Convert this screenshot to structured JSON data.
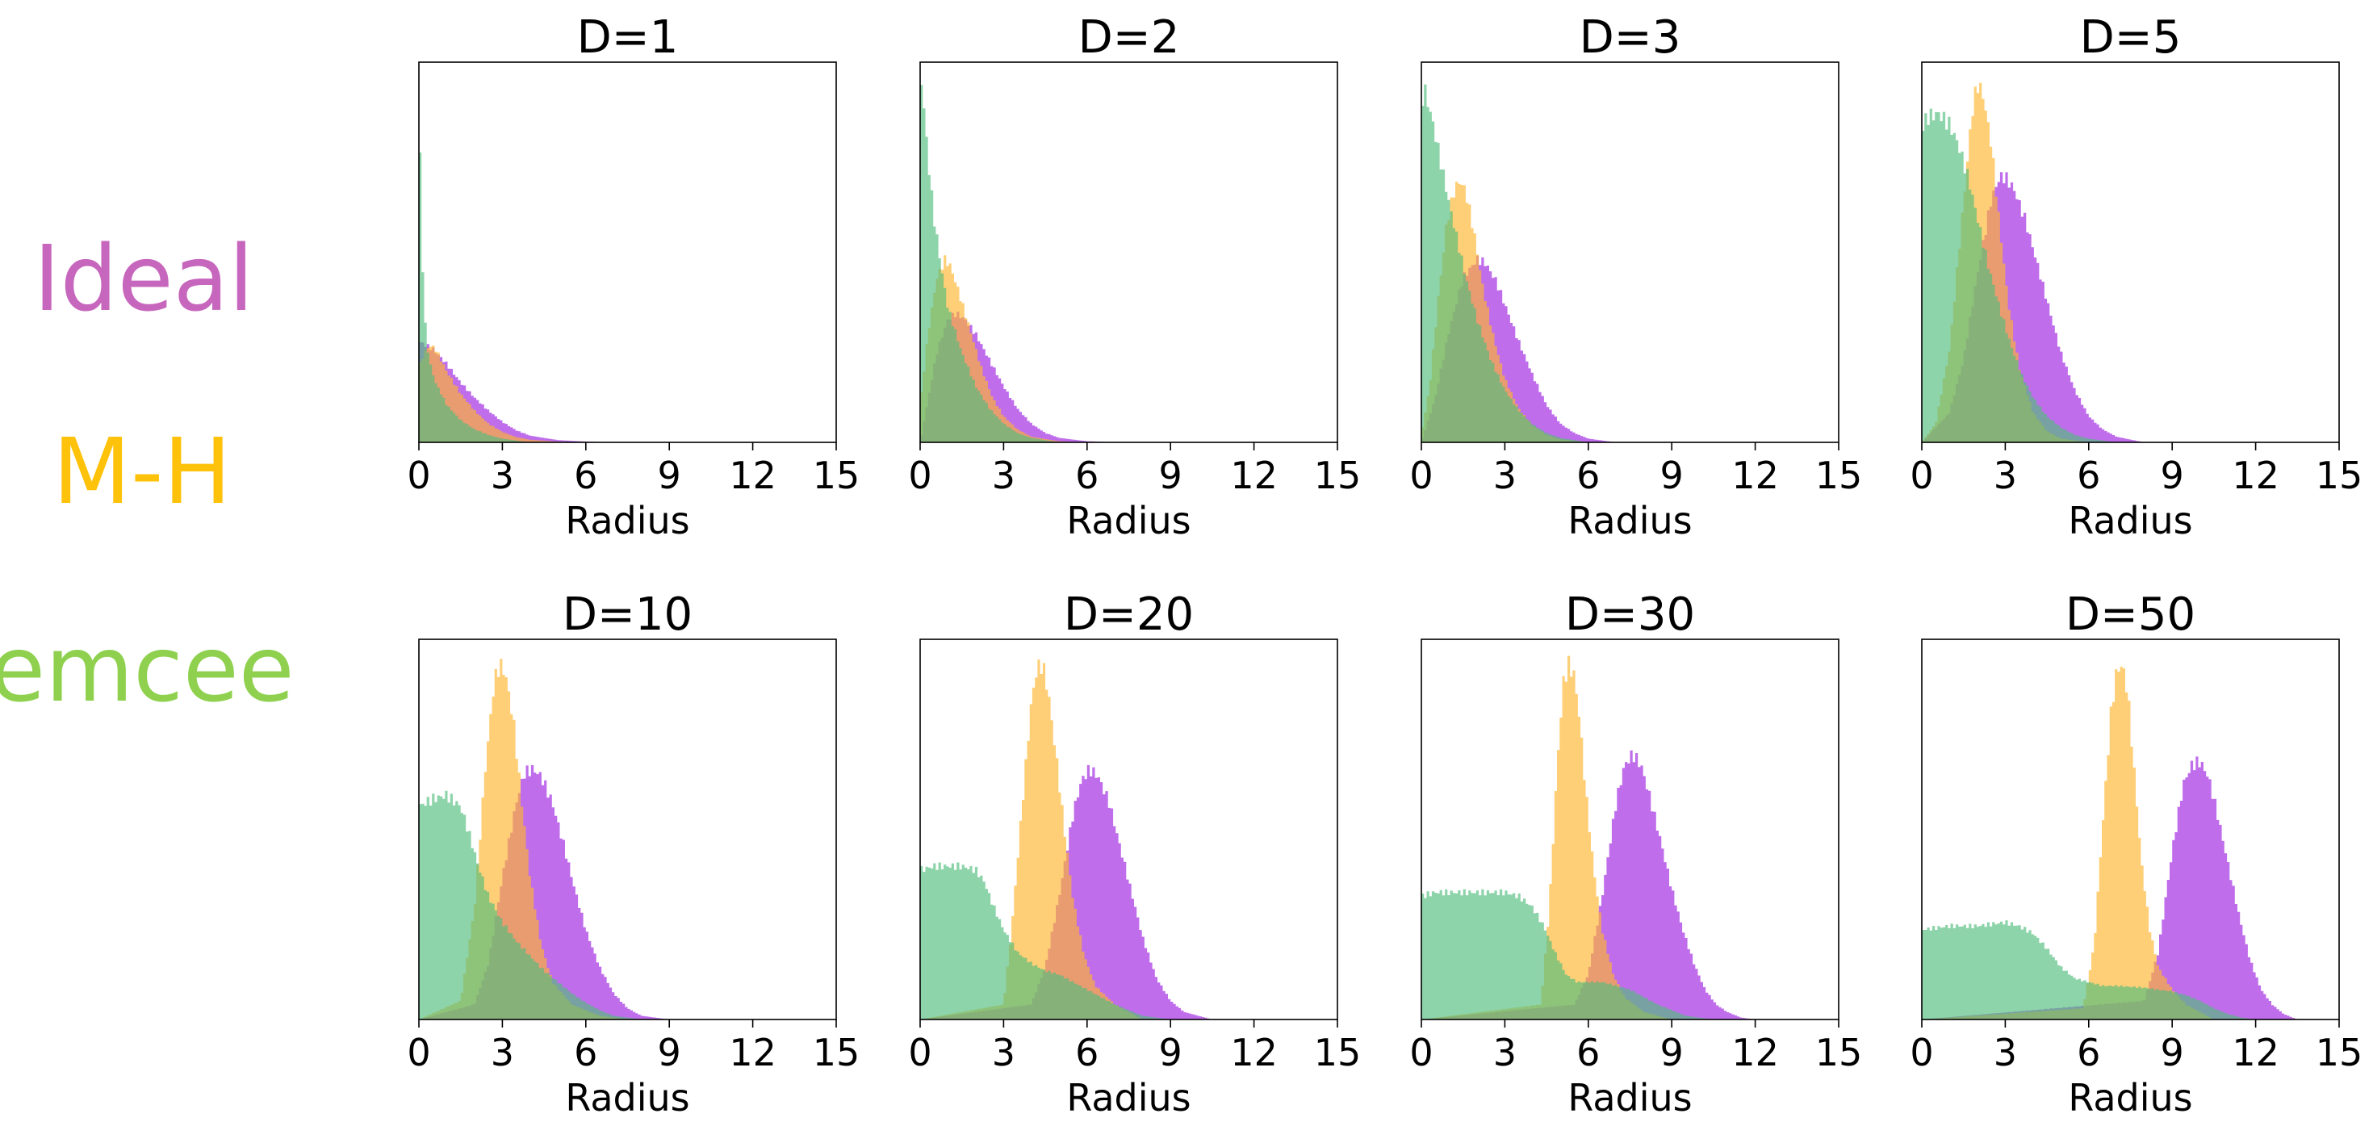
{
  "legend": [
    {
      "label": "Ideal",
      "color": "#c766bd"
    },
    {
      "label": "M-H",
      "color": "#ffc20a"
    },
    {
      "label": "emcee",
      "color": "#8fd14f"
    }
  ],
  "chart_data": [
    {
      "type": "histogram",
      "title": "D=1",
      "xlabel": "Radius",
      "xlim": [
        0,
        15
      ],
      "xticks": [
        0,
        3,
        6,
        9,
        12,
        15
      ],
      "xtick_labels": [
        "0",
        "3",
        "6",
        "9",
        "12",
        "15"
      ],
      "series": [
        {
          "name": "Ideal",
          "color": "#9d1fe0",
          "x": [
            0,
            0.5,
            1,
            1.5,
            2,
            2.5,
            3,
            3.5,
            4,
            5,
            6,
            7
          ],
          "y": [
            0.27,
            0.25,
            0.21,
            0.16,
            0.12,
            0.085,
            0.055,
            0.032,
            0.018,
            0.006,
            0.002,
            0
          ]
        },
        {
          "name": "M-H",
          "color": "#ffb62e",
          "x": [
            0,
            0.2,
            0.4,
            0.6,
            0.8,
            1,
            1.5,
            2,
            2.5,
            3,
            3.5,
            4,
            5,
            6
          ],
          "y": [
            0.2,
            0.24,
            0.26,
            0.25,
            0.22,
            0.19,
            0.13,
            0.085,
            0.05,
            0.028,
            0.014,
            0.007,
            0.002,
            0
          ]
        },
        {
          "name": "emcee",
          "color": "#52bd7c",
          "x": [
            0,
            0.05,
            0.1,
            0.2,
            0.3,
            0.4,
            0.6,
            0.8,
            1,
            1.5,
            2,
            2.5,
            3,
            4
          ],
          "y": [
            1,
            0.75,
            0.55,
            0.34,
            0.26,
            0.21,
            0.16,
            0.13,
            0.1,
            0.06,
            0.035,
            0.02,
            0.01,
            0
          ]
        }
      ]
    },
    {
      "type": "histogram",
      "title": "D=2",
      "xlabel": "Radius",
      "xlim": [
        0,
        15
      ],
      "xticks": [
        0,
        3,
        6,
        9,
        12,
        15
      ],
      "xtick_labels": [
        "0",
        "3",
        "6",
        "9",
        "12",
        "15"
      ],
      "series": [
        {
          "name": "Ideal",
          "color": "#9d1fe0",
          "x": [
            0,
            0.3,
            0.6,
            1,
            1.3,
            1.6,
            2,
            2.5,
            3,
            3.5,
            4,
            4.5,
            5,
            6,
            7
          ],
          "y": [
            0,
            0.12,
            0.24,
            0.33,
            0.345,
            0.33,
            0.29,
            0.22,
            0.15,
            0.09,
            0.05,
            0.025,
            0.012,
            0.003,
            0
          ]
        },
        {
          "name": "M-H",
          "color": "#ffb62e",
          "x": [
            0,
            0.3,
            0.6,
            0.9,
            1.1,
            1.4,
            1.8,
            2.2,
            2.6,
            3,
            3.5,
            4,
            5,
            6
          ],
          "y": [
            0.1,
            0.3,
            0.44,
            0.49,
            0.47,
            0.4,
            0.3,
            0.2,
            0.12,
            0.07,
            0.035,
            0.015,
            0.003,
            0
          ]
        },
        {
          "name": "emcee",
          "color": "#52bd7c",
          "x": [
            0,
            0.1,
            0.3,
            0.5,
            0.8,
            1,
            1.5,
            2,
            2.5,
            3,
            3.5,
            4,
            5
          ],
          "y": [
            1,
            0.93,
            0.75,
            0.6,
            0.45,
            0.36,
            0.24,
            0.15,
            0.09,
            0.05,
            0.025,
            0.012,
            0
          ]
        }
      ]
    },
    {
      "type": "histogram",
      "title": "D=3",
      "xlabel": "Radius",
      "xlim": [
        0,
        15
      ],
      "xticks": [
        0,
        3,
        6,
        9,
        12,
        15
      ],
      "xtick_labels": [
        "0",
        "3",
        "6",
        "9",
        "12",
        "15"
      ],
      "series": [
        {
          "name": "Ideal",
          "color": "#9d1fe0",
          "x": [
            0,
            0.5,
            1,
            1.5,
            2,
            2.3,
            2.7,
            3,
            3.5,
            4,
            4.5,
            5,
            5.5,
            6,
            7
          ],
          "y": [
            0,
            0.12,
            0.3,
            0.44,
            0.49,
            0.48,
            0.43,
            0.37,
            0.27,
            0.18,
            0.1,
            0.05,
            0.025,
            0.01,
            0
          ]
        },
        {
          "name": "M-H",
          "color": "#ffb62e",
          "x": [
            0,
            0.3,
            0.6,
            0.9,
            1.2,
            1.4,
            1.6,
            1.9,
            2.2,
            2.6,
            3,
            3.5,
            4,
            4.5,
            5,
            6
          ],
          "y": [
            0.02,
            0.15,
            0.38,
            0.58,
            0.68,
            0.7,
            0.67,
            0.56,
            0.42,
            0.28,
            0.17,
            0.09,
            0.045,
            0.02,
            0.008,
            0
          ]
        },
        {
          "name": "emcee",
          "color": "#52bd7c",
          "x": [
            0,
            0.1,
            0.4,
            0.7,
            1,
            1.3,
            1.6,
            2,
            2.5,
            3,
            3.5,
            4,
            4.5,
            5,
            6
          ],
          "y": [
            0.9,
            0.95,
            0.86,
            0.75,
            0.64,
            0.54,
            0.44,
            0.33,
            0.22,
            0.14,
            0.085,
            0.048,
            0.025,
            0.012,
            0
          ]
        }
      ]
    },
    {
      "type": "histogram",
      "title": "D=5",
      "xlabel": "Radius",
      "xlim": [
        0,
        15
      ],
      "xticks": [
        0,
        3,
        6,
        9,
        12,
        15
      ],
      "xtick_labels": [
        "0",
        "3",
        "6",
        "9",
        "12",
        "15"
      ],
      "series": [
        {
          "name": "Ideal",
          "color": "#9d1fe0",
          "x": [
            0,
            1,
            1.5,
            2,
            2.5,
            2.8,
            3,
            3.3,
            3.7,
            4,
            4.5,
            5,
            5.5,
            6,
            6.5,
            7,
            8
          ],
          "y": [
            0,
            0.08,
            0.22,
            0.45,
            0.65,
            0.71,
            0.71,
            0.68,
            0.6,
            0.52,
            0.38,
            0.24,
            0.14,
            0.07,
            0.035,
            0.015,
            0
          ]
        },
        {
          "name": "M-H",
          "color": "#ffb62e",
          "x": [
            0,
            0.5,
            1,
            1.5,
            1.8,
            2,
            2.2,
            2.5,
            2.8,
            3.1,
            3.5,
            4,
            4.5,
            5,
            6
          ],
          "y": [
            0,
            0.05,
            0.25,
            0.64,
            0.88,
            0.96,
            0.93,
            0.8,
            0.58,
            0.38,
            0.2,
            0.08,
            0.03,
            0.01,
            0
          ]
        },
        {
          "name": "emcee",
          "color": "#52bd7c",
          "x": [
            0,
            0.2,
            0.6,
            1,
            1.3,
            1.7,
            2,
            2.4,
            2.8,
            3.2,
            3.6,
            4,
            4.5,
            5,
            5.5,
            6,
            7
          ],
          "y": [
            0.84,
            0.87,
            0.88,
            0.85,
            0.8,
            0.7,
            0.6,
            0.47,
            0.36,
            0.26,
            0.18,
            0.12,
            0.07,
            0.04,
            0.02,
            0.01,
            0
          ]
        }
      ]
    },
    {
      "type": "histogram",
      "title": "D=10",
      "xlabel": "Radius",
      "xlim": [
        0,
        15
      ],
      "xticks": [
        0,
        3,
        6,
        9,
        12,
        15
      ],
      "xtick_labels": [
        "0",
        "3",
        "6",
        "9",
        "12",
        "15"
      ],
      "series": [
        {
          "name": "Ideal",
          "color": "#9d1fe0",
          "x": [
            0,
            2,
            2.5,
            3,
            3.5,
            3.8,
            4.1,
            4.4,
            4.8,
            5.2,
            5.6,
            6,
            6.5,
            7,
            7.5,
            8,
            9
          ],
          "y": [
            0,
            0.04,
            0.15,
            0.38,
            0.58,
            0.66,
            0.67,
            0.65,
            0.58,
            0.47,
            0.35,
            0.24,
            0.14,
            0.07,
            0.03,
            0.01,
            0
          ]
        },
        {
          "name": "M-H",
          "color": "#ffb62e",
          "x": [
            0,
            1.5,
            2,
            2.4,
            2.7,
            2.9,
            3.1,
            3.4,
            3.7,
            4,
            4.4,
            4.8,
            5.5,
            6.5,
            7.5
          ],
          "y": [
            0,
            0.05,
            0.3,
            0.68,
            0.9,
            0.95,
            0.93,
            0.8,
            0.58,
            0.38,
            0.2,
            0.1,
            0.04,
            0.01,
            0
          ]
        },
        {
          "name": "emcee",
          "color": "#52bd7c",
          "x": [
            0,
            0.5,
            1,
            1.5,
            1.8,
            2.1,
            2.5,
            3,
            3.5,
            4,
            4.5,
            5,
            5.5,
            6,
            6.5,
            7,
            8
          ],
          "y": [
            0.57,
            0.59,
            0.6,
            0.57,
            0.5,
            0.42,
            0.33,
            0.26,
            0.21,
            0.17,
            0.13,
            0.1,
            0.07,
            0.045,
            0.025,
            0.01,
            0
          ]
        }
      ]
    },
    {
      "type": "histogram",
      "title": "D=20",
      "xlabel": "Radius",
      "xlim": [
        0,
        15
      ],
      "xticks": [
        0,
        3,
        6,
        9,
        12,
        15
      ],
      "xtick_labels": [
        "0",
        "3",
        "6",
        "9",
        "12",
        "15"
      ],
      "series": [
        {
          "name": "Ideal",
          "color": "#9d1fe0",
          "x": [
            0,
            4,
            4.5,
            5,
            5.5,
            5.8,
            6.1,
            6.4,
            6.8,
            7.2,
            7.6,
            8,
            8.5,
            9,
            9.5,
            10.5
          ],
          "y": [
            0,
            0.04,
            0.14,
            0.33,
            0.55,
            0.64,
            0.67,
            0.65,
            0.58,
            0.46,
            0.34,
            0.22,
            0.11,
            0.05,
            0.02,
            0
          ]
        },
        {
          "name": "M-H",
          "color": "#ffb62e",
          "x": [
            0,
            3,
            3.3,
            3.7,
            4,
            4.2,
            4.4,
            4.6,
            4.9,
            5.2,
            5.5,
            5.9,
            6.3,
            7,
            8
          ],
          "y": [
            0,
            0.04,
            0.25,
            0.6,
            0.85,
            0.94,
            0.95,
            0.88,
            0.7,
            0.5,
            0.32,
            0.17,
            0.09,
            0.04,
            0
          ]
        },
        {
          "name": "emcee",
          "color": "#52bd7c",
          "x": [
            0,
            0.5,
            1,
            1.5,
            2,
            2.3,
            2.6,
            3,
            3.5,
            4,
            4.5,
            5,
            5.5,
            6,
            6.5,
            7,
            7.5,
            8,
            9
          ],
          "y": [
            0.4,
            0.41,
            0.41,
            0.41,
            0.4,
            0.37,
            0.31,
            0.24,
            0.18,
            0.15,
            0.13,
            0.12,
            0.1,
            0.08,
            0.06,
            0.04,
            0.025,
            0.01,
            0
          ]
        }
      ]
    },
    {
      "type": "histogram",
      "title": "D=30",
      "xlabel": "Radius",
      "xlim": [
        0,
        15
      ],
      "xticks": [
        0,
        3,
        6,
        9,
        12,
        15
      ],
      "xtick_labels": [
        "0",
        "3",
        "6",
        "9",
        "12",
        "15"
      ],
      "series": [
        {
          "name": "Ideal",
          "color": "#9d1fe0",
          "x": [
            0,
            5.5,
            6,
            6.5,
            7,
            7.3,
            7.6,
            7.9,
            8.2,
            8.6,
            9,
            9.4,
            9.8,
            10.2,
            10.6,
            11,
            11.5,
            12
          ],
          "y": [
            0,
            0.04,
            0.12,
            0.33,
            0.58,
            0.68,
            0.71,
            0.68,
            0.6,
            0.48,
            0.35,
            0.24,
            0.15,
            0.08,
            0.04,
            0.02,
            0.005,
            0
          ]
        },
        {
          "name": "M-H",
          "color": "#ffb62e",
          "x": [
            0,
            4.3,
            4.6,
            4.9,
            5.1,
            5.3,
            5.5,
            5.7,
            5.9,
            6.2,
            6.5,
            6.9,
            7.3,
            8,
            9
          ],
          "y": [
            0,
            0.04,
            0.3,
            0.7,
            0.9,
            0.95,
            0.92,
            0.8,
            0.62,
            0.4,
            0.24,
            0.12,
            0.06,
            0.02,
            0
          ]
        },
        {
          "name": "emcee",
          "color": "#52bd7c",
          "x": [
            0,
            0.5,
            1,
            2,
            3,
            3.5,
            4,
            4.4,
            4.8,
            5.2,
            5.6,
            6,
            6.5,
            7,
            7.5,
            8,
            8.5,
            9,
            9.5,
            10.5
          ],
          "y": [
            0.33,
            0.34,
            0.34,
            0.34,
            0.34,
            0.33,
            0.3,
            0.25,
            0.18,
            0.12,
            0.1,
            0.1,
            0.1,
            0.09,
            0.08,
            0.06,
            0.04,
            0.025,
            0.01,
            0
          ]
        }
      ]
    },
    {
      "type": "histogram",
      "title": "D=50",
      "xlabel": "Radius",
      "xlim": [
        0,
        15
      ],
      "xticks": [
        0,
        3,
        6,
        9,
        12,
        15
      ],
      "xtick_labels": [
        "0",
        "3",
        "6",
        "9",
        "12",
        "15"
      ],
      "series": [
        {
          "name": "Ideal",
          "color": "#9d1fe0",
          "x": [
            0,
            8,
            8.5,
            9,
            9.4,
            9.7,
            10,
            10.3,
            10.6,
            11,
            11.4,
            11.8,
            12.2,
            12.6,
            13,
            13.5
          ],
          "y": [
            0,
            0.05,
            0.18,
            0.45,
            0.63,
            0.68,
            0.69,
            0.65,
            0.56,
            0.42,
            0.28,
            0.16,
            0.08,
            0.04,
            0.015,
            0
          ]
        },
        {
          "name": "M-H",
          "color": "#ffb62e",
          "x": [
            0,
            5.8,
            6.2,
            6.5,
            6.8,
            7,
            7.2,
            7.4,
            7.6,
            7.9,
            8.2,
            8.5,
            9,
            9.5,
            10.5
          ],
          "y": [
            0,
            0.03,
            0.2,
            0.52,
            0.82,
            0.93,
            0.95,
            0.88,
            0.7,
            0.42,
            0.24,
            0.14,
            0.08,
            0.04,
            0
          ]
        },
        {
          "name": "emcee",
          "color": "#52bd7c",
          "x": [
            0,
            1,
            2,
            3,
            3.5,
            4,
            4.5,
            5,
            5.5,
            6,
            6.5,
            7,
            8,
            8.5,
            9,
            9.5,
            10,
            10.5,
            11,
            11.5,
            12
          ],
          "y": [
            0.24,
            0.25,
            0.25,
            0.26,
            0.25,
            0.23,
            0.19,
            0.14,
            0.11,
            0.1,
            0.09,
            0.09,
            0.085,
            0.08,
            0.075,
            0.065,
            0.05,
            0.03,
            0.015,
            0.005,
            0
          ]
        }
      ]
    }
  ]
}
